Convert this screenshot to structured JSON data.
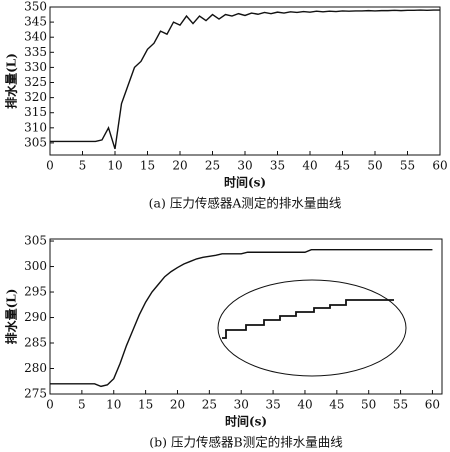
{
  "chart_data": [
    {
      "type": "line",
      "title": "(a) 压力传感器A测定的排水量曲线",
      "x_label": "时间(s)",
      "y_label": "排水量(L)",
      "color": "#111",
      "x": [
        0,
        1,
        2,
        3,
        4,
        5,
        6,
        7,
        8,
        9,
        10,
        11,
        12,
        13,
        14,
        15,
        16,
        17,
        18,
        19,
        20,
        21,
        22,
        23,
        24,
        25,
        26,
        27,
        28,
        29,
        30,
        31,
        32,
        33,
        34,
        35,
        36,
        37,
        38,
        39,
        40,
        41,
        42,
        43,
        44,
        45,
        46,
        47,
        48,
        49,
        50,
        51,
        52,
        53,
        54,
        55,
        56,
        57,
        58,
        59,
        60
      ],
      "values": [
        305.5,
        305.5,
        305.5,
        305.5,
        305.5,
        305.5,
        305.5,
        305.5,
        306,
        310,
        303,
        318,
        324,
        330,
        332,
        336,
        338,
        342,
        341,
        345,
        344,
        347,
        344.5,
        347,
        345.5,
        347.5,
        346,
        347.5,
        347,
        347.8,
        347.2,
        348,
        347.6,
        348.2,
        347.8,
        348.3,
        348,
        348.4,
        348.2,
        348.5,
        348.3,
        348.6,
        348.4,
        348.6,
        348.5,
        348.7,
        348.6,
        348.7,
        348.7,
        348.8,
        348.7,
        348.8,
        348.8,
        348.9,
        348.8,
        348.9,
        348.9,
        349,
        348.9,
        349,
        349
      ],
      "xlim": [
        0,
        60
      ],
      "xticks": [
        0,
        5,
        10,
        15,
        20,
        25,
        30,
        35,
        40,
        45,
        50,
        55,
        60
      ],
      "ylim": [
        301,
        350
      ],
      "yticks": [
        305,
        310,
        315,
        320,
        325,
        330,
        335,
        340,
        345,
        350
      ]
    },
    {
      "type": "line",
      "title": "(b) 压力传感器B测定的排水量曲线",
      "x_label": "时间(s)",
      "y_label": "排水量(L)",
      "color": "#111",
      "x": [
        0,
        1,
        2,
        3,
        4,
        5,
        6,
        7,
        8,
        9,
        10,
        11,
        12,
        13,
        14,
        15,
        16,
        17,
        18,
        19,
        20,
        21,
        22,
        23,
        24,
        25,
        26,
        27,
        28,
        29,
        30,
        31,
        32,
        33,
        34,
        35,
        36,
        37,
        38,
        39,
        40,
        41,
        42,
        43,
        44,
        45,
        46,
        47,
        48,
        49,
        50,
        51,
        52,
        53,
        54,
        55,
        56,
        57,
        58,
        59,
        60
      ],
      "values": [
        277,
        277,
        277,
        277,
        277,
        277,
        277,
        277,
        276.5,
        276.8,
        278,
        281,
        284.5,
        287.5,
        290.5,
        293,
        295,
        296.5,
        298,
        299,
        299.8,
        300.5,
        301,
        301.5,
        301.8,
        302,
        302.2,
        302.5,
        302.5,
        302.5,
        302.5,
        302.8,
        302.8,
        302.8,
        302.8,
        302.8,
        302.8,
        302.8,
        302.8,
        302.8,
        302.8,
        303.3,
        303.3,
        303.3,
        303.3,
        303.3,
        303.3,
        303.3,
        303.3,
        303.3,
        303.3,
        303.3,
        303.3,
        303.3,
        303.3,
        303.3,
        303.3,
        303.3,
        303.3,
        303.3,
        303.3
      ],
      "xlim": [
        0,
        61.5
      ],
      "xticks": [
        0,
        5,
        10,
        15,
        20,
        25,
        30,
        35,
        40,
        45,
        50,
        55,
        60
      ],
      "ylim": [
        275,
        305.4
      ],
      "yticks": [
        275,
        280,
        285,
        290,
        295,
        300,
        305
      ]
    }
  ]
}
